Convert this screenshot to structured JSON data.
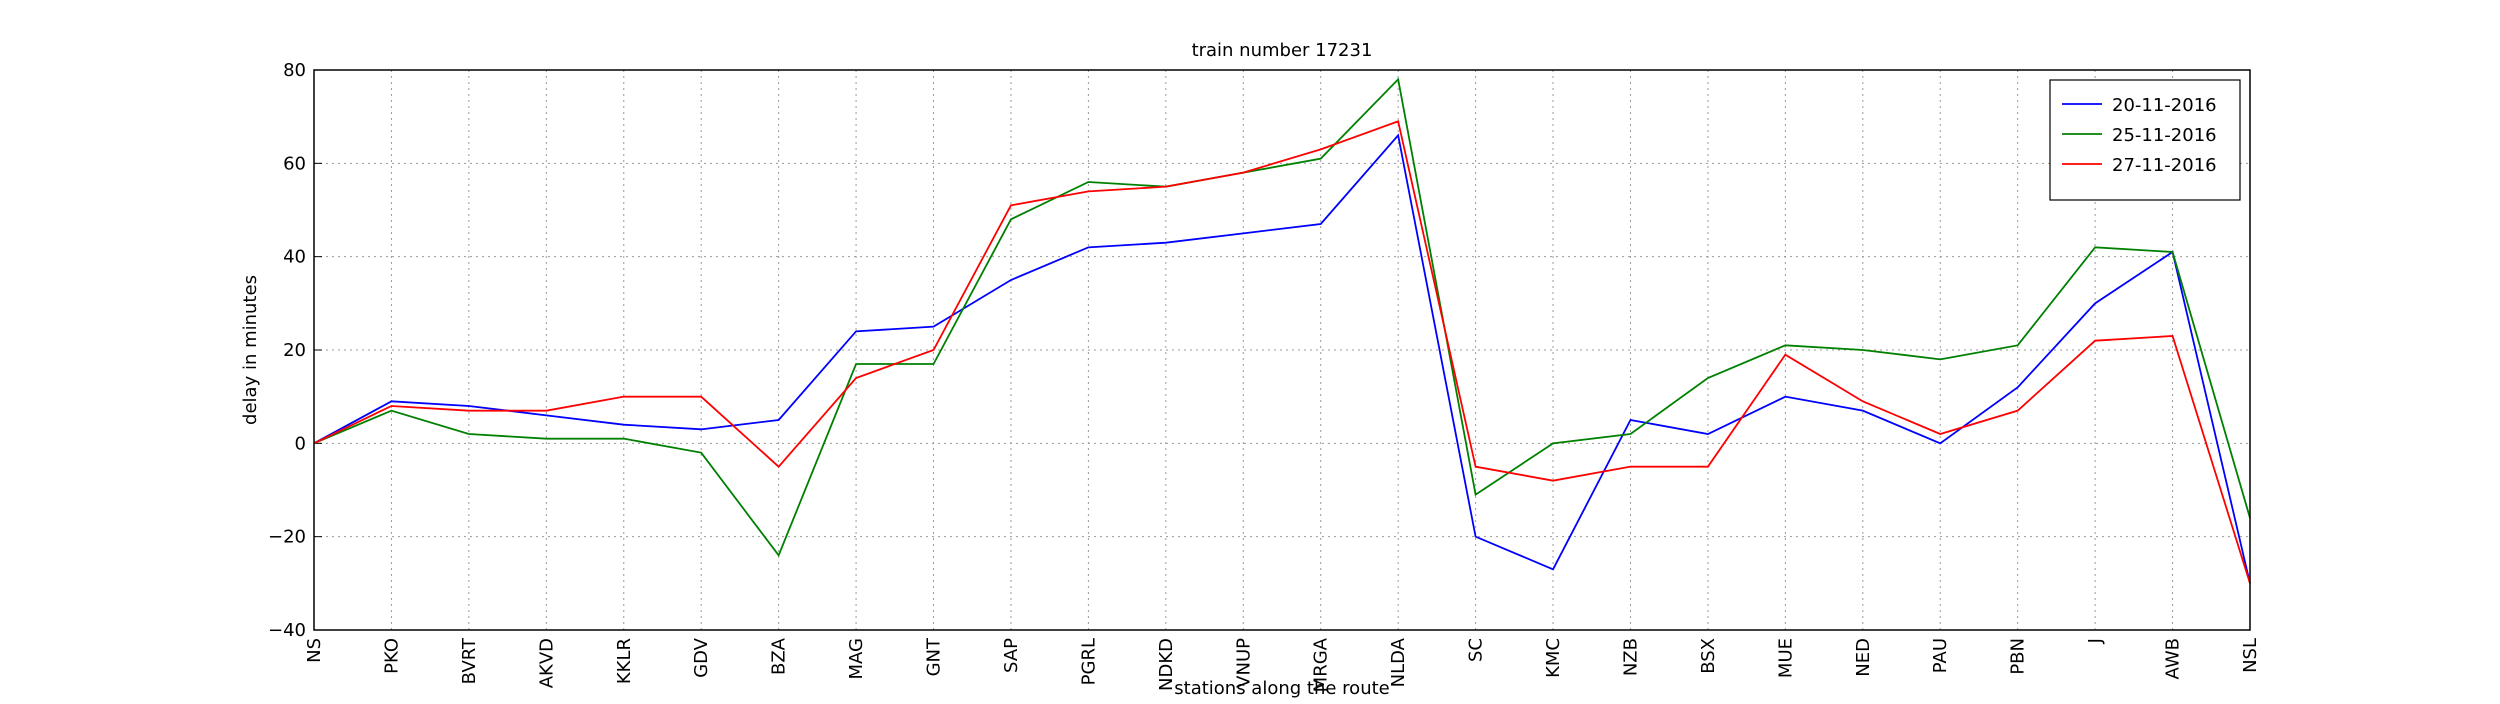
{
  "chart_data": {
    "type": "line",
    "title": "train number 17231",
    "x_label": "stations along the route",
    "y_label": "delay in minutes",
    "categories": [
      "NS",
      "PKO",
      "BVRT",
      "AKVD",
      "KKLR",
      "GDV",
      "BZA",
      "MAG",
      "GNT",
      "SAP",
      "PGRL",
      "NDKD",
      "VNUP",
      "MRGA",
      "NLDA",
      "SC",
      "KMC",
      "NZB",
      "BSX",
      "MUE",
      "NED",
      "PAU",
      "PBN",
      "J",
      "AWB",
      "NSL"
    ],
    "series": [
      {
        "name": "20-11-2016",
        "color": "#0000ff",
        "values": [
          0,
          9,
          8,
          6,
          4,
          3,
          5,
          24,
          25,
          35,
          42,
          43,
          45,
          47,
          66,
          -20,
          -27,
          5,
          2,
          10,
          7,
          0,
          12,
          30,
          41,
          -30
        ]
      },
      {
        "name": "25-11-2016",
        "color": "#008000",
        "values": [
          0,
          7,
          2,
          1,
          1,
          -2,
          -24,
          17,
          17,
          48,
          56,
          55,
          58,
          61,
          78,
          -11,
          0,
          2,
          14,
          21,
          20,
          18,
          21,
          42,
          41,
          -16
        ]
      },
      {
        "name": "27-11-2016",
        "color": "#ff0000",
        "values": [
          0,
          8,
          7,
          7,
          10,
          10,
          -5,
          14,
          20,
          51,
          54,
          55,
          58,
          63,
          69,
          -5,
          -8,
          -5,
          -5,
          19,
          9,
          2,
          7,
          22,
          23,
          -30
        ]
      }
    ],
    "ylim": [
      -40,
      80
    ],
    "yticks": [
      {
        "value": -40,
        "label": "−40"
      },
      {
        "value": -20,
        "label": "−20"
      },
      0,
      20,
      40,
      60,
      80
    ],
    "grid": true,
    "legend": "upper-right"
  }
}
